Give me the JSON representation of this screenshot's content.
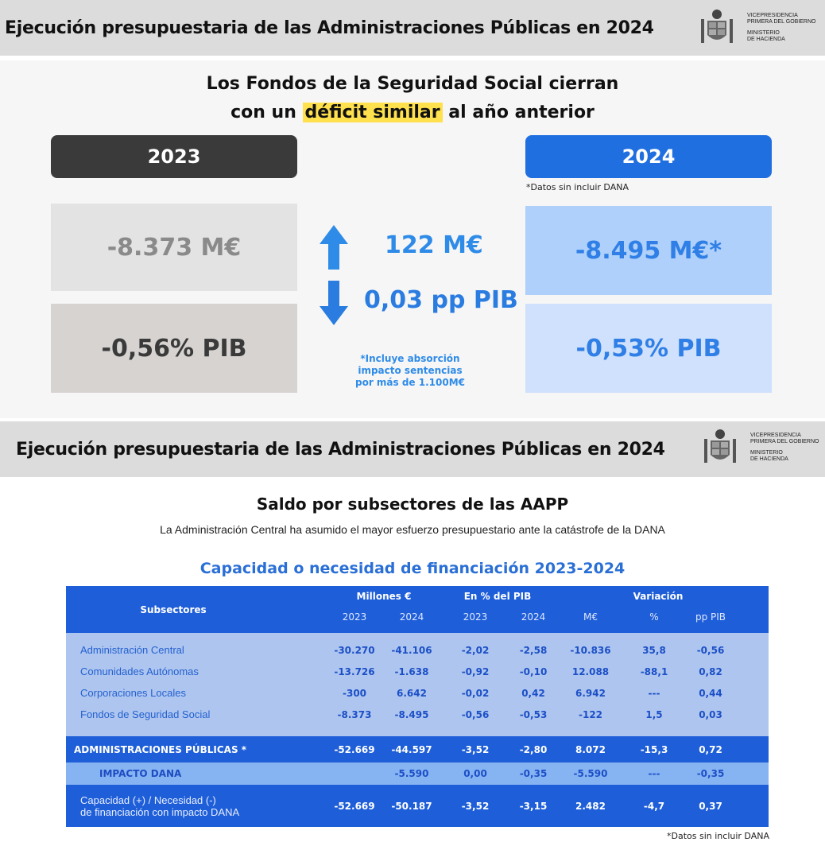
{
  "header": {
    "title": "Ejecución presupuestaria de las Administraciones Públicas en 2024",
    "ministry_line1": "VICEPRESIDENCIA",
    "ministry_line2": "PRIMERA DEL GOBIERNO",
    "ministry_line3": "MINISTERIO",
    "ministry_line4": "DE HACIENDA"
  },
  "panel1": {
    "headline_line1": "Los Fondos de la Seguridad Social cierran",
    "headline_pre": "con un ",
    "headline_highlight": "déficit similar",
    "headline_post": " al año anterior",
    "year_left": "2023",
    "year_right": "2024",
    "datos_note": "*Datos sin incluir DANA",
    "val_2023_meur": "-8.373 M€",
    "val_2023_pib": "-0,56% PIB",
    "val_2024_meur": "-8.495 M€*",
    "val_2024_pib": "-0,53% PIB",
    "change_meur": "122 M€",
    "change_pib": "0,03 pp PIB",
    "note_line1": "*Incluye absorción",
    "note_line2": "impacto sentencias",
    "note_line3": "por más de 1.100M€",
    "colors": {
      "dark": "#3a3a3a",
      "blue": "#1f6fe0",
      "light_blue": "#aed0fb",
      "accent": "#2f8be8",
      "highlight": "#ffe14d"
    }
  },
  "panel2": {
    "title": "Saldo por subsectores de las AAPP",
    "subtitle": "La Administración Central ha asumido el mayor esfuerzo presupuestario ante la catástrofe de la DANA",
    "table_title": "Capacidad o necesidad de financiación 2023-2024",
    "footnote": "*Datos sin incluir DANA",
    "table": {
      "col_subsectores": "Subsectores",
      "grp_millones": "Millones €",
      "grp_pib": "En % del PIB",
      "grp_variacion": "Variación",
      "sub_headers": [
        "2023",
        "2024",
        "2023",
        "2024",
        "M€",
        "%",
        "pp PIB"
      ],
      "rows": [
        {
          "name": "Administración Central",
          "values": [
            "-30.270",
            "-41.106",
            "-2,02",
            "-2,58",
            "-10.836",
            "35,8",
            "-0,56"
          ]
        },
        {
          "name": "Comunidades Autónomas",
          "values": [
            "-13.726",
            "-1.638",
            "-0,92",
            "-0,10",
            "12.088",
            "-88,1",
            "0,82"
          ]
        },
        {
          "name": "Corporaciones Locales",
          "values": [
            "-300",
            "6.642",
            "-0,02",
            "0,42",
            "6.942",
            "---",
            "0,44"
          ]
        },
        {
          "name": "Fondos de Seguridad Social",
          "values": [
            "-8.373",
            "-8.495",
            "-0,56",
            "-0,53",
            "-122",
            "1,5",
            "0,03"
          ]
        }
      ],
      "total": {
        "name": "ADMINISTRACIONES PÚBLICAS *",
        "values": [
          "-52.669",
          "-44.597",
          "-3,52",
          "-2,80",
          "8.072",
          "-15,3",
          "0,72"
        ]
      },
      "dana": {
        "name": "IMPACTO DANA",
        "values": [
          "",
          "-5.590",
          "0,00",
          "-0,35",
          "-5.590",
          "---",
          "-0,35"
        ]
      },
      "final": {
        "name_line1": "Capacidad (+) / Necesidad (-)",
        "name_line2": "de financiación con impacto DANA",
        "values": [
          "-52.669",
          "-50.187",
          "-3,52",
          "-3,15",
          "2.482",
          "-4,7",
          "0,37"
        ]
      }
    }
  }
}
